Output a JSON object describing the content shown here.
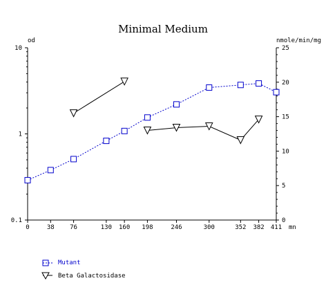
{
  "chart_data": {
    "type": "line",
    "title": "Minimal Medium",
    "xlabel": "mn",
    "ylabel_left": "od",
    "ylabel_right": "nmole/min/mg",
    "x_ticks": [
      0,
      38,
      76,
      130,
      160,
      198,
      246,
      300,
      352,
      382,
      411
    ],
    "xlim": [
      0,
      411
    ],
    "ylim_left": [
      0.1,
      10
    ],
    "yscale_left": "log",
    "y_ticks_left": [
      "10",
      "1",
      "0.1"
    ],
    "ylim_right": [
      0,
      25
    ],
    "y_ticks_right": [
      "25",
      "20",
      "15",
      "10",
      "5",
      "0"
    ],
    "grid": false,
    "legend_position": "bottom-left",
    "series": [
      {
        "name": "Mutant",
        "axis": "left",
        "marker": "square",
        "color": "#0000cc",
        "line": "dotted",
        "x": [
          0,
          38,
          76,
          130,
          160,
          198,
          246,
          300,
          352,
          382,
          411
        ],
        "y": [
          0.29,
          0.38,
          0.51,
          0.83,
          1.08,
          1.55,
          2.2,
          3.45,
          3.7,
          3.85,
          3.05
        ]
      },
      {
        "name": "Beta Galactosidase",
        "axis": "right",
        "marker": "triangle-down",
        "color": "#000000",
        "line": "solid",
        "segments": [
          {
            "x": [
              76,
              160
            ],
            "y": [
              15.5,
              20.1
            ]
          },
          {
            "x": [
              198,
              246,
              300,
              352,
              382
            ],
            "y": [
              13.0,
              13.4,
              13.6,
              11.6,
              14.6
            ]
          }
        ]
      }
    ]
  }
}
